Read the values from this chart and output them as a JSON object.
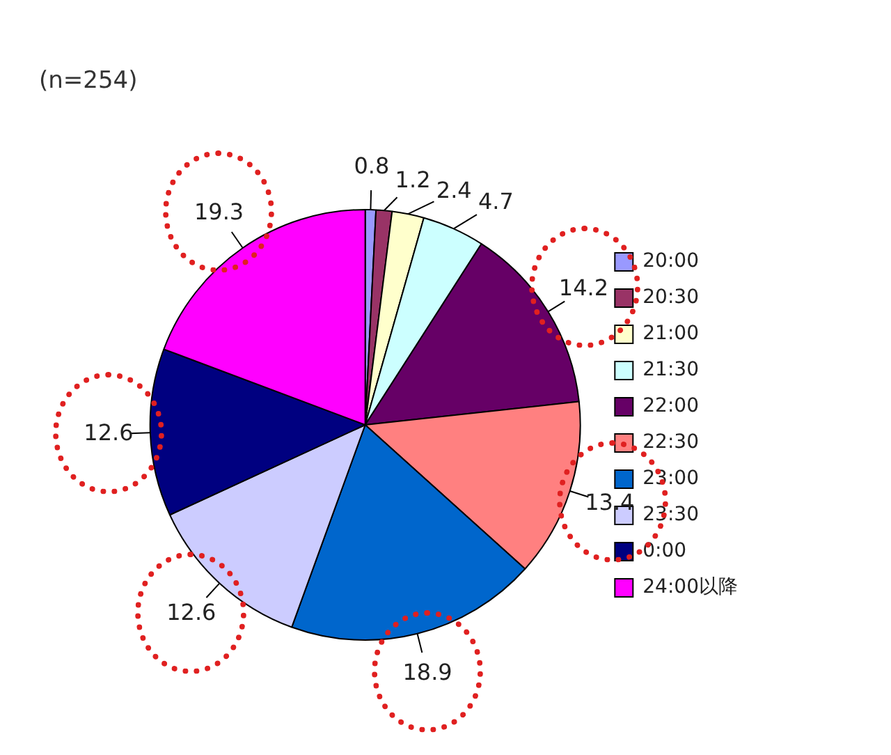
{
  "chart_data": {
    "type": "pie",
    "annotations": [
      "(n=254)"
    ],
    "categories": [
      "20:00",
      "20:30",
      "21:00",
      "21:30",
      "22:00",
      "22:30",
      "23:00",
      "23:30",
      "0:00",
      "24:00以降"
    ],
    "values": [
      0.8,
      1.2,
      2.4,
      4.7,
      14.2,
      13.4,
      18.9,
      12.6,
      12.6,
      19.3
    ],
    "colors": [
      "#9999ff",
      "#993366",
      "#ffffcc",
      "#ccffff",
      "#660066",
      "#ff8080",
      "#0066cc",
      "#ccccff",
      "#000080",
      "#ff00ff"
    ],
    "data_labels": true,
    "legend": "right"
  }
}
